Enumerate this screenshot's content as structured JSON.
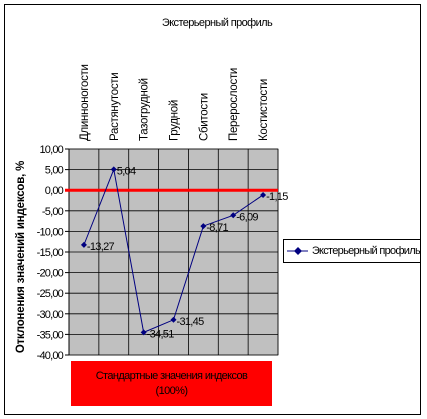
{
  "chart_data": {
    "type": "line",
    "title": "Экстерьерный профиль",
    "categories": [
      "Длинноногости",
      "Растянутости",
      "Тазогрудной",
      "Грудной",
      "Сбитости",
      "Перерослости",
      "Костистости"
    ],
    "series": [
      {
        "name": "Экстерьерный профиль",
        "values": [
          -13.27,
          5.04,
          -34.51,
          -31.45,
          -8.71,
          -6.09,
          -1.15
        ],
        "labels": [
          "-13,27",
          "5,04",
          "-34,51",
          "-31,45",
          "-8,71",
          "-6,09",
          "-1,15"
        ],
        "color": "#000080"
      }
    ],
    "ylabel": "Отклонения значений индексов, %",
    "xlabel": "Стандартные значения индексов\n(100%)",
    "ylim": [
      -40,
      10
    ],
    "yticks": [
      10,
      5,
      0,
      -5,
      -10,
      -15,
      -20,
      -25,
      -30,
      -35,
      -40
    ],
    "ytick_labels": [
      "10,00",
      "5,00",
      "0,00",
      "-5,00",
      "-10,00",
      "-15,00",
      "-20,00",
      "-25,00",
      "-30,00",
      "-35,00",
      "-40,00"
    ],
    "reference_line": {
      "value": 0,
      "color": "#ff0000"
    },
    "plot_background": "#c0c0c0",
    "grid": true,
    "legend_position": "right"
  }
}
